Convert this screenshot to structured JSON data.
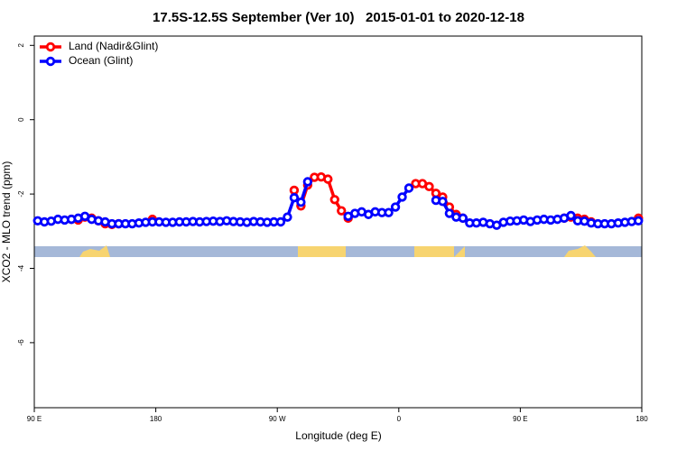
{
  "chart_data": {
    "type": "line",
    "title": "17.5S-12.5S September (Ver 10)   2015-01-01 to 2020-12-18",
    "xlabel": "Longitude (deg E)",
    "ylabel": "XCO2 - MLO trend (ppm)",
    "xlim": [
      90,
      540
    ],
    "xticks": [
      {
        "value": 90,
        "label": "90 E"
      },
      {
        "value": 180,
        "label": "180"
      },
      {
        "value": 270,
        "label": "90 W"
      },
      {
        "value": 360,
        "label": "0"
      },
      {
        "value": 450,
        "label": "90 E"
      },
      {
        "value": 540,
        "label": "180"
      }
    ],
    "ylim": [
      -7.75,
      2.25
    ],
    "yticks": [
      2,
      0,
      -2,
      -4,
      -6
    ],
    "grid": false,
    "legend": "top-left",
    "x": [
      92.5,
      97.5,
      102.5,
      107.5,
      112.5,
      117.5,
      122.5,
      127.5,
      132.5,
      137.5,
      142.5,
      147.5,
      152.5,
      157.5,
      162.5,
      167.5,
      172.5,
      177.5,
      182.5,
      187.5,
      192.5,
      197.5,
      202.5,
      207.5,
      212.5,
      217.5,
      222.5,
      227.5,
      232.5,
      237.5,
      242.5,
      247.5,
      252.5,
      257.5,
      262.5,
      267.5,
      272.5,
      277.5,
      282.5,
      287.5,
      292.5,
      297.5,
      302.5,
      307.5,
      312.5,
      317.5,
      322.5,
      327.5,
      332.5,
      337.5,
      342.5,
      347.5,
      352.5,
      357.5,
      362.5,
      367.5,
      372.5,
      377.5,
      382.5,
      387.5,
      392.5,
      397.5,
      402.5,
      407.5,
      412.5,
      417.5,
      422.5,
      427.5,
      432.5,
      437.5,
      442.5,
      447.5,
      452.5,
      457.5,
      462.5,
      467.5,
      472.5,
      477.5,
      482.5,
      487.5,
      492.5,
      497.5,
      502.5,
      507.5,
      512.5,
      517.5,
      522.5,
      527.5,
      532.5,
      537.5
    ],
    "series": [
      {
        "name": "Land (Nadir&Glint)",
        "color": "#ff0000",
        "values": [
          null,
          null,
          null,
          null,
          null,
          -2.68,
          -2.7,
          -2.62,
          -2.65,
          -2.72,
          -2.8,
          -2.82,
          -2.8,
          null,
          null,
          null,
          null,
          -2.68,
          null,
          null,
          null,
          null,
          null,
          null,
          null,
          null,
          null,
          null,
          null,
          null,
          null,
          null,
          null,
          null,
          null,
          null,
          null,
          null,
          -1.9,
          -2.32,
          -1.76,
          -1.55,
          -1.54,
          -1.6,
          -2.15,
          -2.45,
          -2.65,
          null,
          null,
          null,
          null,
          null,
          null,
          null,
          null,
          null,
          -1.72,
          -1.72,
          -1.8,
          -1.98,
          -2.08,
          -2.35,
          -2.55,
          -2.65,
          null,
          null,
          null,
          null,
          null,
          null,
          null,
          null,
          null,
          null,
          null,
          null,
          null,
          null,
          -2.65,
          -2.62,
          -2.65,
          -2.68,
          -2.75,
          null,
          null,
          null,
          null,
          null,
          null,
          -2.65
        ]
      },
      {
        "name": "Ocean (Glint)",
        "color": "#0000ff",
        "values": [
          -2.72,
          -2.75,
          -2.73,
          -2.68,
          -2.7,
          -2.68,
          -2.65,
          -2.6,
          -2.68,
          -2.72,
          -2.75,
          -2.8,
          -2.8,
          -2.8,
          -2.8,
          -2.78,
          -2.76,
          -2.75,
          -2.75,
          -2.76,
          -2.76,
          -2.75,
          -2.75,
          -2.74,
          -2.75,
          -2.74,
          -2.73,
          -2.74,
          -2.72,
          -2.74,
          -2.75,
          -2.76,
          -2.74,
          -2.75,
          -2.76,
          -2.75,
          -2.75,
          -2.62,
          -2.1,
          -2.22,
          -1.67,
          null,
          null,
          null,
          null,
          null,
          -2.6,
          -2.52,
          -2.48,
          -2.55,
          -2.48,
          -2.5,
          -2.5,
          -2.35,
          -2.08,
          -1.84,
          null,
          null,
          null,
          -2.17,
          -2.2,
          -2.52,
          -2.62,
          -2.65,
          -2.78,
          -2.78,
          -2.76,
          -2.8,
          -2.84,
          -2.76,
          -2.73,
          -2.72,
          -2.7,
          -2.74,
          -2.7,
          -2.68,
          -2.7,
          -2.68,
          -2.65,
          -2.58,
          -2.72,
          -2.73,
          -2.78,
          -2.8,
          -2.8,
          -2.8,
          -2.78,
          -2.76,
          -2.74,
          -2.72
        ]
      }
    ]
  }
}
